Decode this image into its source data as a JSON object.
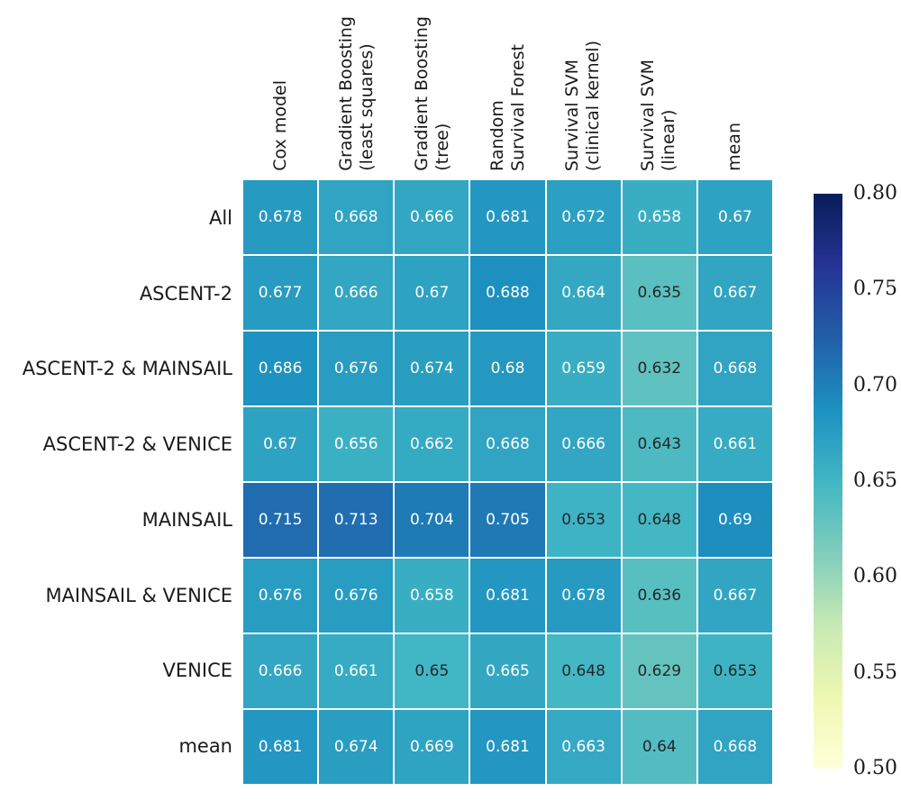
{
  "chart_data": {
    "type": "heatmap",
    "title": "",
    "xlabel": "",
    "ylabel": "",
    "rows": [
      "All",
      "ASCENT-2",
      "ASCENT-2 & MAINSAIL",
      "ASCENT-2 & VENICE",
      "MAINSAIL",
      "MAINSAIL & VENICE",
      "VENICE",
      "mean"
    ],
    "columns": [
      [
        "Cox model"
      ],
      [
        "Gradient Boosting",
        "(least squares)"
      ],
      [
        "Gradient Boosting",
        "(tree)"
      ],
      [
        "Random",
        "Survival Forest"
      ],
      [
        "Survival SVM",
        "(clinical kernel)"
      ],
      [
        "Survival SVM",
        "(linear)"
      ],
      [
        "mean"
      ]
    ],
    "values": [
      [
        0.678,
        0.668,
        0.666,
        0.681,
        0.672,
        0.658,
        0.67
      ],
      [
        0.677,
        0.666,
        0.67,
        0.688,
        0.664,
        0.635,
        0.667
      ],
      [
        0.686,
        0.676,
        0.674,
        0.68,
        0.659,
        0.632,
        0.668
      ],
      [
        0.67,
        0.656,
        0.662,
        0.668,
        0.666,
        0.643,
        0.661
      ],
      [
        0.715,
        0.713,
        0.704,
        0.705,
        0.653,
        0.648,
        0.69
      ],
      [
        0.676,
        0.676,
        0.658,
        0.681,
        0.678,
        0.636,
        0.667
      ],
      [
        0.666,
        0.661,
        0.65,
        0.665,
        0.648,
        0.629,
        0.653
      ],
      [
        0.681,
        0.674,
        0.669,
        0.681,
        0.663,
        0.64,
        0.668
      ]
    ],
    "colormap": "YlGnBu",
    "colormap_stops": [
      "#ffffd9",
      "#edf8b1",
      "#c7e9b4",
      "#7fcdbb",
      "#41b6c4",
      "#1d91c0",
      "#225ea8",
      "#253494",
      "#081d58"
    ],
    "vmin": 0.5,
    "vmax": 0.8,
    "colorbar_position": "right",
    "colorbar_ticks": [
      "0.80",
      "0.75",
      "0.70",
      "0.65",
      "0.60",
      "0.55",
      "0.50"
    ],
    "annotation_colors": {
      "dark": "#262626",
      "light": "#ffffff"
    },
    "grid_gap_color": "#ffffff"
  }
}
